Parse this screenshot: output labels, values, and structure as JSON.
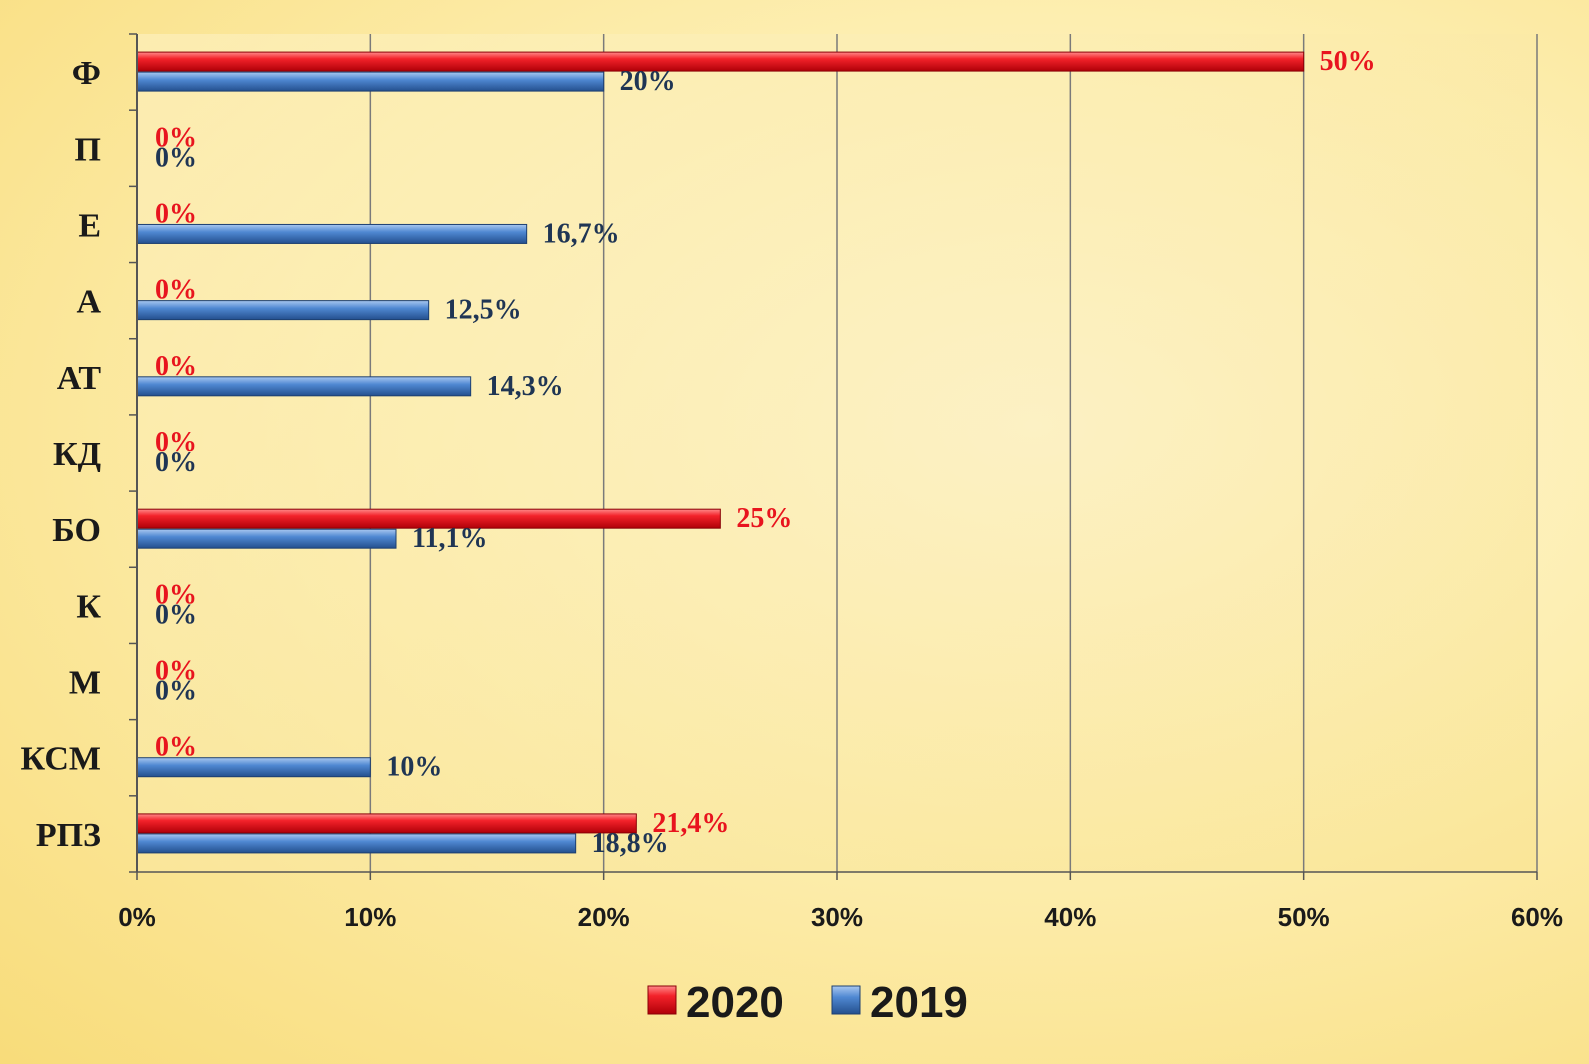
{
  "chart_data": {
    "type": "bar",
    "orientation": "horizontal",
    "categories": [
      "Ф",
      "П",
      "Е",
      "А",
      "АТ",
      "КД",
      "БО",
      "К",
      "М",
      "КСМ",
      "РПЗ"
    ],
    "series": [
      {
        "name": "2020",
        "color": "#e8141e",
        "values": [
          50,
          0,
          0,
          0,
          0,
          0,
          25,
          0,
          0,
          0,
          21.4
        ],
        "labels": [
          "50%",
          "0%",
          "0%",
          "0%",
          "0%",
          "0%",
          "25%",
          "0%",
          "0%",
          "0%",
          "21,4%"
        ]
      },
      {
        "name": "2019",
        "color": "#3f7ac4",
        "values": [
          20,
          0,
          16.7,
          12.5,
          14.3,
          0,
          11.1,
          0,
          0,
          10,
          18.8
        ],
        "labels": [
          "20%",
          "0%",
          "16,7%",
          "12,5%",
          "14,3%",
          "0%",
          "11,1%",
          "0%",
          "0%",
          "10%",
          "18,8%"
        ]
      }
    ],
    "xlim": [
      0,
      60
    ],
    "xticks": [
      "0%",
      "10%",
      "20%",
      "30%",
      "40%",
      "50%",
      "60%"
    ],
    "grid": true,
    "legend_position": "bottom",
    "value_label_color_2020": "#e8141e",
    "value_label_color_2019": "#1f3554",
    "title": "",
    "xlabel": "",
    "ylabel": ""
  }
}
